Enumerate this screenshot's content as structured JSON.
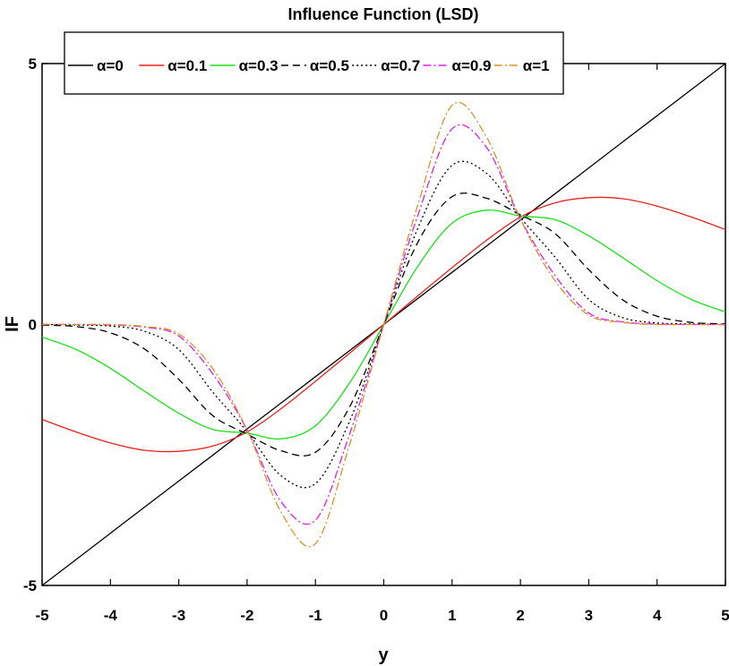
{
  "chart_data": {
    "type": "line",
    "title": "Influence Function (LSD)",
    "xlabel": "y",
    "ylabel": "IF",
    "xlim": [
      -5,
      5
    ],
    "ylim": [
      -5,
      5
    ],
    "xticks": [
      "-5",
      "-4",
      "-3",
      "-2",
      "-1",
      "0",
      "1",
      "2",
      "3",
      "4",
      "5"
    ],
    "yticks": [
      "-5",
      "0",
      "5"
    ],
    "grid": false,
    "legend": "top",
    "x": [
      -5,
      -4.5,
      -4,
      -3.5,
      -3,
      -2.5,
      -2,
      -1.5,
      -1,
      -0.5,
      0,
      0.5,
      1,
      1.5,
      2,
      2.5,
      3,
      3.5,
      4,
      4.5,
      5
    ],
    "series": [
      {
        "name": "α=0",
        "color": "#000000",
        "dash": "solid",
        "values": [
          -5,
          -4.5,
          -4,
          -3.5,
          -3,
          -2.5,
          -2,
          -1.5,
          -1,
          -0.5,
          0,
          0.5,
          1,
          1.5,
          2,
          2.5,
          3,
          3.5,
          4,
          4.5,
          5
        ]
      },
      {
        "name": "α=0.1",
        "color": "#e8221e",
        "dash": "solid",
        "values": [
          -1.82,
          -2.06,
          -2.27,
          -2.41,
          -2.43,
          -2.33,
          -2.06,
          -1.61,
          -1.09,
          -0.55,
          0,
          0.55,
          1.09,
          1.61,
          2.06,
          2.33,
          2.43,
          2.41,
          2.27,
          2.06,
          1.82
        ]
      },
      {
        "name": "α=0.3",
        "color": "#1be01b",
        "dash": "solid",
        "values": [
          -0.24,
          -0.48,
          -0.84,
          -1.28,
          -1.7,
          -2.01,
          -2.08,
          -2.19,
          -1.94,
          -1.12,
          0,
          1.12,
          1.94,
          2.19,
          2.08,
          2.01,
          1.7,
          1.28,
          0.84,
          0.48,
          0.24
        ]
      },
      {
        "name": "α=0.5",
        "color": "#000000",
        "dash": "8,5",
        "values": [
          -0.01,
          -0.04,
          -0.16,
          -0.47,
          -1.05,
          -1.75,
          -2.1,
          -2.42,
          -2.45,
          -1.58,
          0,
          1.58,
          2.45,
          2.42,
          2.1,
          1.75,
          1.05,
          0.47,
          0.16,
          0.04,
          0.01
        ]
      },
      {
        "name": "α=0.7",
        "color": "#000000",
        "dash": "2,3",
        "values": [
          0,
          -0.01,
          -0.03,
          -0.13,
          -0.48,
          -1.3,
          -2.05,
          -2.9,
          -3.05,
          -1.85,
          0,
          1.85,
          3.05,
          2.9,
          2.05,
          1.3,
          0.48,
          0.13,
          0.03,
          0.01,
          0
        ]
      },
      {
        "name": "α=0.9",
        "color": "#e11ee1",
        "dash": "9,3,2,3",
        "values": [
          0,
          0,
          -0.01,
          -0.05,
          -0.22,
          -0.95,
          -2.02,
          -3.4,
          -3.75,
          -2.1,
          0,
          2.1,
          3.75,
          3.4,
          2.02,
          0.95,
          0.22,
          0.05,
          0.01,
          0,
          0
        ]
      },
      {
        "name": "α=1",
        "color": "#d9902a",
        "dash": "9,3,2,3",
        "values": [
          0,
          0,
          0,
          -0.04,
          -0.18,
          -0.85,
          -2.02,
          -3.6,
          -4.2,
          -2.3,
          0,
          2.3,
          4.2,
          3.6,
          2.02,
          0.85,
          0.18,
          0.04,
          0,
          0,
          0
        ]
      }
    ]
  }
}
